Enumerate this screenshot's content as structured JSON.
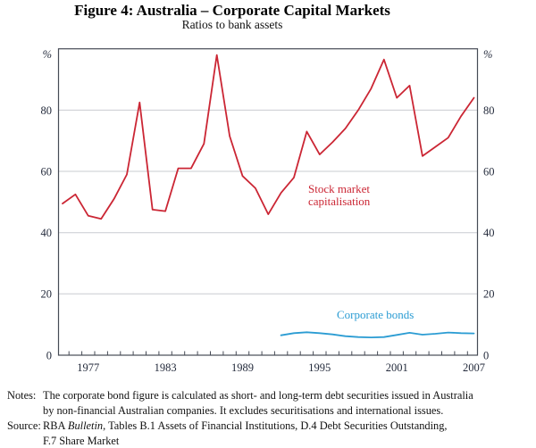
{
  "figure": {
    "title": "Figure 4: Australia – Corporate Capital Markets",
    "subtitle": "Ratios to bank assets"
  },
  "chart_data": {
    "type": "line",
    "title": "Figure 4: Australia – Corporate Capital Markets",
    "subtitle": "Ratios to bank assets",
    "unit_label": "%",
    "ylim": [
      0,
      100
    ],
    "yticks": [
      0,
      20,
      40,
      60,
      80
    ],
    "xlim": [
      1975,
      2007
    ],
    "xtick_labels": [
      1977,
      1983,
      1989,
      1995,
      2001,
      2007
    ],
    "grid": "horizontal gridlines at 20, 40, 60, 80",
    "legend_position": "in-plot text annotations",
    "colors": {
      "grid": "#c9ccd1",
      "axis": "#464b55",
      "text": "#242b3c"
    },
    "series": [
      {
        "id": "stock-market",
        "name": "Stock market capitalisation",
        "label_lines": [
          "Stock market",
          "capitalisation"
        ],
        "color": "#cb2634",
        "x_start": 1975,
        "values": [
          49.5,
          52.5,
          45.5,
          44.5,
          51,
          59,
          82.5,
          47.5,
          47,
          61,
          61,
          69,
          98,
          71.5,
          58.5,
          54.5,
          46,
          53,
          58,
          73,
          65.5,
          69.5,
          74,
          80,
          87,
          96.5,
          84,
          88,
          65,
          68,
          71,
          78,
          84
        ]
      },
      {
        "id": "corporate-bonds",
        "name": "Corporate bonds",
        "label_lines": [
          "Corporate bonds"
        ],
        "color": "#2b9cd3",
        "x_start": 1992,
        "values": [
          6.5,
          7.2,
          7.5,
          7.2,
          6.8,
          6.2,
          5.9,
          5.8,
          5.9,
          6.6,
          7.3,
          6.7,
          7.0,
          7.4,
          7.2,
          7.1
        ]
      }
    ]
  },
  "notes": {
    "label": "Notes:",
    "lines": [
      "The corporate bond figure is calculated as short- and long-term debt securities issued in Australia",
      "by non-financial Australian companies. It excludes securitisations and international issues."
    ]
  },
  "source": {
    "label": "Source:",
    "prefix": "RBA ",
    "italic": "Bulletin",
    "rest": ", Tables B.1 Assets of Financial Institutions, D.4 Debt Securities Outstanding,",
    "line2": "F.7 Share Market"
  }
}
